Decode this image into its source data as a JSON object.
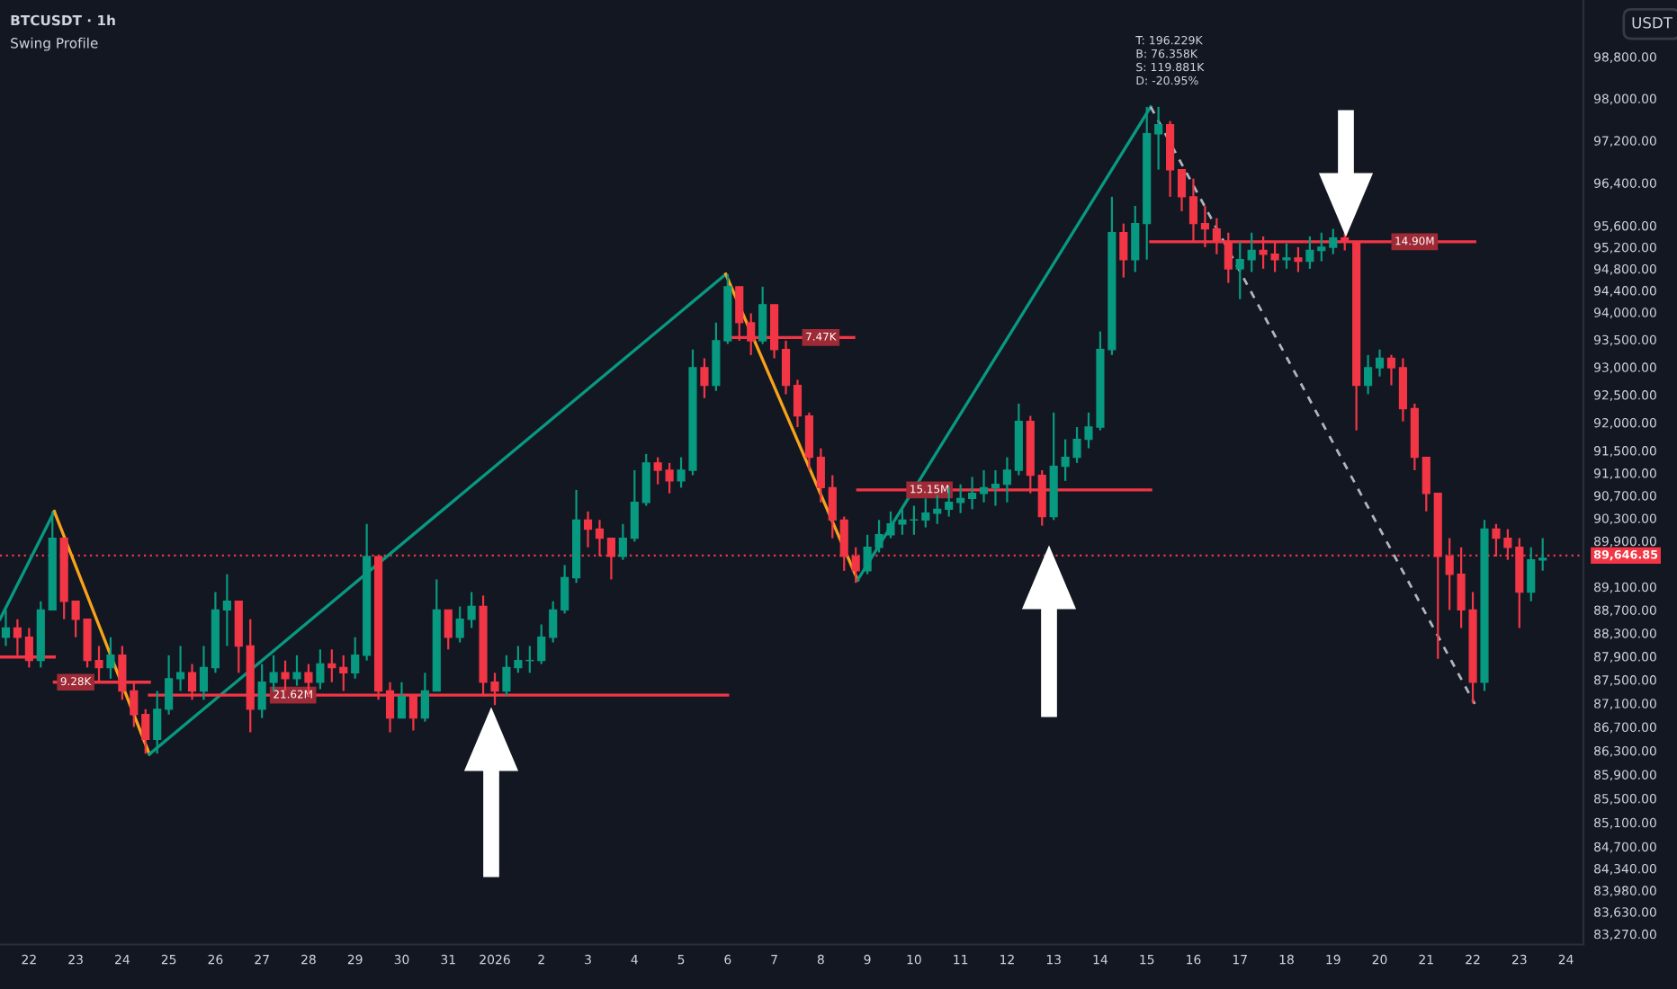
{
  "chart_data": {
    "type": "candlestick",
    "title": "BTCUSDT · 1h",
    "subtitle": "Swing Profile",
    "ylabel": "USDT",
    "log": true,
    "grid": false,
    "colors": [
      "#089981",
      "#f23645",
      "#f23645",
      "#089981",
      "#089981",
      "#f23645",
      "#f23645",
      "#f23645",
      "#f23645",
      "#089981",
      "#f23645",
      "#f23645",
      "#f23645",
      "#089981",
      "#089981",
      "#089981",
      "#f23645",
      "#089981",
      "#089981",
      "#089981",
      "#f23645",
      "#f23645",
      "#089981",
      "#089981",
      "#f23645",
      "#089981",
      "#f23645",
      "#089981",
      "#f23645",
      "#f23645",
      "#089981",
      "#089981",
      "#f23645",
      "#f23645",
      "#089981",
      "#f23645",
      "#089981",
      "#089981",
      "#f23645",
      "#089981",
      "#089981",
      "#f23645",
      "#f23645",
      "#089981",
      "#089981",
      "#089981",
      "#089981",
      "#089981",
      "#089981",
      "#089981",
      "#f23645",
      "#f23645",
      "#f23645",
      "#089981",
      "#089981",
      "#089981",
      "#f23645",
      "#f23645",
      "#089981",
      "#089981",
      "#f23645",
      "#089981",
      "#089981",
      "#f23645",
      "#f23645",
      "#089981",
      "#f23645",
      "#f23645",
      "#f23645",
      "#f23645",
      "#f23645",
      "#f23645",
      "#f23645",
      "#f23645",
      "#089981",
      "#089981",
      "#089981",
      "#089981",
      "#089981",
      "#089981",
      "#089981",
      "#089981",
      "#089981",
      "#089981",
      "#089981",
      "#089981",
      "#089981",
      "#089981",
      "#f23645",
      "#f23645",
      "#089981",
      "#089981",
      "#089981",
      "#089981",
      "#089981",
      "#089981",
      "#f23645",
      "#089981",
      "#089981",
      "#089981",
      "#f23645",
      "#f23645",
      "#f23645",
      "#f23645",
      "#f23645",
      "#f23645",
      "#089981",
      "#089981",
      "#f23645",
      "#f23645",
      "#089981",
      "#f23645",
      "#089981",
      "#089981",
      "#089981",
      "#f23645",
      "#f23645",
      "#089981",
      "#089981",
      "#f23645",
      "#f23645",
      "#f23645",
      "#f23645",
      "#f23645",
      "#f23645",
      "#f23645",
      "#f23645",
      "#089981",
      "#f23645",
      "#f23645",
      "#f23645",
      "#089981",
      "#089981"
    ],
    "x": [
      "2025-12-21T12:00",
      "2025-12-21T18:00",
      "2025-12-22T00:00",
      "2025-12-22T06:00",
      "2025-12-22T12:00",
      "2025-12-22T18:00",
      "2025-12-23T00:00",
      "2025-12-23T06:00",
      "2025-12-23T12:00",
      "2025-12-23T18:00",
      "2025-12-24T00:00",
      "2025-12-24T06:00",
      "2025-12-24T12:00",
      "2025-12-24T18:00",
      "2025-12-25T00:00",
      "2025-12-25T06:00",
      "2025-12-25T12:00",
      "2025-12-25T18:00",
      "2025-12-26T00:00",
      "2025-12-26T06:00",
      "2025-12-26T12:00",
      "2025-12-26T18:00",
      "2025-12-27T00:00",
      "2025-12-27T06:00",
      "2025-12-27T12:00",
      "2025-12-27T18:00",
      "2025-12-28T00:00",
      "2025-12-28T06:00",
      "2025-12-28T12:00",
      "2025-12-28T18:00",
      "2025-12-29T00:00",
      "2025-12-29T06:00",
      "2025-12-29T12:00",
      "2025-12-29T18:00",
      "2025-12-30T00:00",
      "2025-12-30T06:00",
      "2025-12-30T12:00",
      "2025-12-30T18:00",
      "2025-12-31T00:00",
      "2025-12-31T06:00",
      "2025-12-31T12:00",
      "2025-12-31T18:00",
      "2026-01-01T00:00",
      "2026-01-01T06:00",
      "2026-01-01T12:00",
      "2026-01-01T18:00",
      "2026-01-02T00:00",
      "2026-01-02T06:00",
      "2026-01-02T12:00",
      "2026-01-02T18:00",
      "2026-01-03T00:00",
      "2026-01-03T06:00",
      "2026-01-03T12:00",
      "2026-01-03T18:00",
      "2026-01-04T00:00",
      "2026-01-04T06:00",
      "2026-01-04T12:00",
      "2026-01-04T18:00",
      "2026-01-05T00:00",
      "2026-01-05T06:00",
      "2026-01-05T12:00",
      "2026-01-05T18:00",
      "2026-01-06T00:00",
      "2026-01-06T06:00",
      "2026-01-06T12:00",
      "2026-01-06T18:00",
      "2026-01-07T00:00",
      "2026-01-07T06:00",
      "2026-01-07T12:00",
      "2026-01-07T18:00",
      "2026-01-08T00:00",
      "2026-01-08T06:00",
      "2026-01-08T12:00",
      "2026-01-08T18:00",
      "2026-01-09T00:00",
      "2026-01-09T06:00",
      "2026-01-09T12:00",
      "2026-01-09T18:00",
      "2026-01-10T00:00",
      "2026-01-10T06:00",
      "2026-01-10T12:00",
      "2026-01-10T18:00",
      "2026-01-11T00:00",
      "2026-01-11T06:00",
      "2026-01-11T12:00",
      "2026-01-11T18:00",
      "2026-01-12T00:00",
      "2026-01-12T06:00",
      "2026-01-12T12:00",
      "2026-01-12T18:00",
      "2026-01-13T00:00",
      "2026-01-13T06:00",
      "2026-01-13T12:00",
      "2026-01-13T18:00",
      "2026-01-14T00:00",
      "2026-01-14T06:00",
      "2026-01-14T12:00",
      "2026-01-14T18:00",
      "2026-01-15T00:00",
      "2026-01-15T06:00",
      "2026-01-15T12:00",
      "2026-01-15T18:00",
      "2026-01-16T00:00",
      "2026-01-16T06:00",
      "2026-01-16T12:00",
      "2026-01-16T18:00",
      "2026-01-17T00:00",
      "2026-01-17T06:00",
      "2026-01-17T12:00",
      "2026-01-17T18:00",
      "2026-01-18T00:00",
      "2026-01-18T06:00",
      "2026-01-18T12:00",
      "2026-01-18T18:00",
      "2026-01-19T00:00",
      "2026-01-19T06:00",
      "2026-01-19T12:00",
      "2026-01-19T18:00",
      "2026-01-20T00:00",
      "2026-01-20T06:00",
      "2026-01-20T12:00",
      "2026-01-20T18:00",
      "2026-01-21T00:00",
      "2026-01-21T06:00",
      "2026-01-21T12:00",
      "2026-01-21T18:00",
      "2026-01-22T00:00",
      "2026-01-22T06:00",
      "2026-01-22T12:00",
      "2026-01-22T18:00",
      "2026-01-23T00:00",
      "2026-01-23T06:00",
      "2026-01-23T12:00"
    ],
    "ohlc": [
      [
        88230,
        88700,
        88080,
        88390
      ],
      [
        88390,
        88540,
        87920,
        88230
      ],
      [
        88230,
        88390,
        87710,
        87830
      ],
      [
        87830,
        88850,
        87710,
        88700
      ],
      [
        88700,
        90420,
        88700,
        89950
      ],
      [
        89950,
        89950,
        88540,
        88850
      ],
      [
        88850,
        88850,
        88230,
        88540
      ],
      [
        88540,
        88540,
        87710,
        87830
      ],
      [
        87830,
        88080,
        87460,
        87710
      ],
      [
        87710,
        88230,
        87520,
        87920
      ],
      [
        87920,
        88080,
        87160,
        87310
      ],
      [
        87310,
        87460,
        86700,
        86910
      ],
      [
        86910,
        87000,
        86250,
        86490
      ],
      [
        86490,
        87310,
        86250,
        87000
      ],
      [
        87000,
        87920,
        86910,
        87520
      ],
      [
        87520,
        88080,
        87310,
        87620
      ],
      [
        87620,
        87770,
        87160,
        87310
      ],
      [
        87310,
        88080,
        87160,
        87710
      ],
      [
        87710,
        89010,
        87620,
        88700
      ],
      [
        88700,
        89320,
        88080,
        88850
      ],
      [
        88850,
        88850,
        87620,
        88080
      ],
      [
        88080,
        88540,
        86610,
        87000
      ],
      [
        87000,
        87770,
        86850,
        87460
      ],
      [
        87460,
        87920,
        87310,
        87620
      ],
      [
        87620,
        87830,
        87310,
        87520
      ],
      [
        87520,
        87920,
        87400,
        87620
      ],
      [
        87620,
        87770,
        87220,
        87460
      ],
      [
        87460,
        88020,
        87340,
        87770
      ],
      [
        87770,
        88020,
        87460,
        87710
      ],
      [
        87710,
        87920,
        87310,
        87620
      ],
      [
        87620,
        88230,
        87520,
        87920
      ],
      [
        87920,
        90200,
        87830,
        89630
      ],
      [
        89630,
        89630,
        87160,
        87310
      ],
      [
        87310,
        87460,
        86610,
        86850
      ],
      [
        86850,
        87460,
        86850,
        87220
      ],
      [
        87220,
        87220,
        86640,
        86850
      ],
      [
        86850,
        87620,
        86790,
        87310
      ],
      [
        87310,
        89230,
        87310,
        88700
      ],
      [
        88700,
        88700,
        88020,
        88230
      ],
      [
        88230,
        88760,
        88140,
        88540
      ],
      [
        88540,
        89010,
        88390,
        88760
      ],
      [
        88760,
        88950,
        87220,
        87460
      ],
      [
        87460,
        87620,
        87070,
        87310
      ],
      [
        87310,
        87920,
        87220,
        87710
      ],
      [
        87710,
        88080,
        87620,
        87830
      ],
      [
        87830,
        88080,
        87620,
        87830
      ],
      [
        87830,
        88450,
        87770,
        88230
      ],
      [
        88230,
        88850,
        88140,
        88700
      ],
      [
        88700,
        89480,
        88640,
        89260
      ],
      [
        89260,
        90800,
        89170,
        90270
      ],
      [
        90270,
        90420,
        89790,
        90110
      ],
      [
        90110,
        90270,
        89630,
        89950
      ],
      [
        89950,
        89950,
        89230,
        89630
      ],
      [
        89630,
        90200,
        89570,
        89950
      ],
      [
        89950,
        91150,
        89890,
        90580
      ],
      [
        90580,
        91440,
        90520,
        91280
      ],
      [
        91280,
        91380,
        90900,
        91150
      ],
      [
        91150,
        91280,
        90740,
        90960
      ],
      [
        90960,
        91380,
        90840,
        91150
      ],
      [
        91150,
        93320,
        91060,
        92990
      ],
      [
        92990,
        93160,
        92440,
        92670
      ],
      [
        92670,
        93810,
        92570,
        93480
      ],
      [
        93480,
        94700,
        93420,
        94470
      ],
      [
        94470,
        94470,
        93480,
        93810
      ],
      [
        93810,
        93980,
        93220,
        93480
      ],
      [
        93480,
        94470,
        93420,
        94140
      ],
      [
        94140,
        94140,
        93160,
        93320
      ],
      [
        93320,
        93480,
        92510,
        92670
      ],
      [
        92670,
        92770,
        91920,
        92120
      ],
      [
        92120,
        92180,
        91150,
        91380
      ],
      [
        91380,
        91540,
        90580,
        90840
      ],
      [
        90840,
        91060,
        89950,
        90270
      ],
      [
        90270,
        90330,
        89380,
        89630
      ],
      [
        89630,
        89790,
        89170,
        89380
      ],
      [
        89380,
        90010,
        89320,
        89790
      ],
      [
        89790,
        90270,
        89700,
        90010
      ],
      [
        90010,
        90420,
        89950,
        90200
      ],
      [
        90200,
        90490,
        90010,
        90270
      ],
      [
        90270,
        90520,
        90010,
        90270
      ],
      [
        90270,
        90650,
        90140,
        90390
      ],
      [
        90390,
        90710,
        90200,
        90460
      ],
      [
        90460,
        90840,
        90330,
        90580
      ],
      [
        90580,
        90900,
        90390,
        90650
      ],
      [
        90650,
        91030,
        90460,
        90740
      ],
      [
        90740,
        91150,
        90580,
        90840
      ],
      [
        90840,
        91150,
        90520,
        90900
      ],
      [
        90900,
        91380,
        90580,
        91150
      ],
      [
        91150,
        92340,
        91060,
        92020
      ],
      [
        92020,
        92120,
        90740,
        91060
      ],
      [
        91060,
        91150,
        90170,
        90330
      ],
      [
        90330,
        92180,
        90270,
        91220
      ],
      [
        91220,
        91700,
        90960,
        91380
      ],
      [
        91380,
        91920,
        91280,
        91700
      ],
      [
        91700,
        92180,
        91540,
        91920
      ],
      [
        91920,
        93650,
        91860,
        93320
      ],
      [
        93320,
        96140,
        93220,
        95470
      ],
      [
        95470,
        95640,
        94640,
        94970
      ],
      [
        94970,
        95970,
        94740,
        95640
      ],
      [
        95640,
        97840,
        94970,
        97330
      ],
      [
        97330,
        97840,
        96650,
        97500
      ],
      [
        97500,
        97570,
        96140,
        96650
      ],
      [
        96650,
        96650,
        95870,
        96140
      ],
      [
        96140,
        96480,
        95300,
        95640
      ],
      [
        95640,
        95970,
        95200,
        95540
      ],
      [
        95540,
        95740,
        95070,
        95300
      ],
      [
        95300,
        95470,
        94540,
        94800
      ],
      [
        94800,
        95300,
        94240,
        94970
      ],
      [
        94970,
        95470,
        94740,
        95140
      ],
      [
        95140,
        95400,
        94800,
        95070
      ],
      [
        95070,
        95300,
        94740,
        94970
      ],
      [
        94970,
        95270,
        94800,
        95000
      ],
      [
        95000,
        95200,
        94740,
        94940
      ],
      [
        94940,
        95400,
        94800,
        95140
      ],
      [
        95140,
        95470,
        94940,
        95200
      ],
      [
        95200,
        95540,
        95070,
        95370
      ],
      [
        95370,
        95470,
        95140,
        95300
      ],
      [
        95300,
        95300,
        91860,
        92670
      ],
      [
        92670,
        93220,
        92510,
        92990
      ],
      [
        92990,
        93320,
        92830,
        93160
      ],
      [
        93160,
        93220,
        92670,
        92990
      ],
      [
        92990,
        93160,
        92020,
        92250
      ],
      [
        92250,
        92340,
        91150,
        91380
      ],
      [
        91380,
        91380,
        90420,
        90740
      ],
      [
        90740,
        90740,
        87860,
        89630
      ],
      [
        89630,
        89950,
        88700,
        89320
      ],
      [
        89320,
        89790,
        88390,
        88700
      ],
      [
        88700,
        89010,
        87100,
        87460
      ],
      [
        87460,
        90270,
        87310,
        90110
      ],
      [
        90110,
        90200,
        89630,
        89950
      ],
      [
        89950,
        90110,
        89570,
        89790
      ],
      [
        89790,
        89950,
        88390,
        89010
      ],
      [
        89010,
        89790,
        88850,
        89570
      ],
      [
        89570,
        89950,
        89380,
        89600
      ]
    ],
    "series": [
      {
        "type": "line",
        "color": "#089981",
        "x": [
          "2025-12-21T09:00",
          "2025-12-22T13:00"
        ],
        "values": [
          88540,
          90420
        ]
      },
      {
        "type": "line",
        "color": "#f7a21b",
        "x": [
          "2025-12-22T13:00",
          "2025-12-24T14:00"
        ],
        "values": [
          90420,
          86240
        ]
      },
      {
        "type": "line",
        "color": "#089981",
        "x": [
          "2025-12-24T14:00",
          "2026-01-05T23:00"
        ],
        "values": [
          86240,
          94700
        ]
      },
      {
        "type": "line",
        "color": "#f7a21b",
        "x": [
          "2026-01-05T23:00",
          "2026-01-08T19:00"
        ],
        "values": [
          94700,
          89220
        ]
      },
      {
        "type": "line",
        "color": "#089981",
        "x": [
          "2026-01-08T19:00",
          "2026-01-15T02:00"
        ],
        "values": [
          89220,
          97840
        ]
      },
      {
        "type": "line",
        "color": "#b2b5be",
        "line_style": "dashed",
        "x": [
          "2026-01-15T02:00",
          "2026-01-22T01:00"
        ],
        "values": [
          97840,
          87090
        ]
      },
      {
        "type": "line",
        "color": "#f23645",
        "x": [
          "2025-12-21T09:00",
          "2025-12-22T13:00"
        ],
        "values": [
          87890,
          87890
        ]
      },
      {
        "type": "line",
        "color": "#f23645",
        "x": [
          "2025-12-22T13:00",
          "2025-12-24T14:00"
        ],
        "values": [
          87460,
          87460
        ]
      },
      {
        "type": "line",
        "color": "#f23645",
        "x": [
          "2025-12-24T14:00",
          "2026-01-06T00:00"
        ],
        "values": [
          87240,
          87240
        ]
      },
      {
        "type": "line",
        "color": "#f23645",
        "x": [
          "2026-01-05T23:00",
          "2026-01-08T17:00"
        ],
        "values": [
          93540,
          93540
        ]
      },
      {
        "type": "line",
        "color": "#f23645",
        "x": [
          "2026-01-08T19:00",
          "2026-01-15T02:00"
        ],
        "values": [
          90800,
          90800
        ]
      },
      {
        "type": "line",
        "color": "#f23645",
        "x": [
          "2026-01-15T02:00",
          "2026-01-22T01:00"
        ],
        "values": [
          95300,
          95300
        ]
      }
    ],
    "annotations": [
      {
        "text": "9.28K",
        "x": "2025-12-23T00:00",
        "y": 87460
      },
      {
        "text": "21.62M",
        "x": "2025-12-27T16:00",
        "y": 87240
      },
      {
        "text": "7.47K",
        "x": "2026-01-08T00:00",
        "y": 93540
      },
      {
        "text": "15.15M",
        "x": "2026-01-10T08:00",
        "y": 90800
      },
      {
        "text": "14.90M",
        "x": "2026-01-20T18:00",
        "y": 95300
      },
      {
        "text": "T: 196.229K\nB: 76.358K\nS: 119.881K\nD: -20.95%",
        "x": "2026-01-15T02:00",
        "y": 97840
      }
    ],
    "ref_lines": [
      {
        "axis": "y",
        "value": 89646.85,
        "label": "89,646.85",
        "color": "#f23645",
        "line_style": "dotted"
      }
    ],
    "xlim": [
      "2025-12-21T09:00",
      "2026-01-24T09:00"
    ],
    "xticks": [
      {
        "value": "2025-12-22",
        "label": "22"
      },
      {
        "value": "2025-12-23",
        "label": "23"
      },
      {
        "value": "2025-12-24",
        "label": "24"
      },
      {
        "value": "2025-12-25",
        "label": "25"
      },
      {
        "value": "2025-12-26",
        "label": "26"
      },
      {
        "value": "2025-12-27",
        "label": "27"
      },
      {
        "value": "2025-12-28",
        "label": "28"
      },
      {
        "value": "2025-12-29",
        "label": "29"
      },
      {
        "value": "2025-12-30",
        "label": "30"
      },
      {
        "value": "2025-12-31",
        "label": "31"
      },
      {
        "value": "2026-01-01",
        "label": "2026"
      },
      {
        "value": "2026-01-02",
        "label": "2"
      },
      {
        "value": "2026-01-03",
        "label": "3"
      },
      {
        "value": "2026-01-04",
        "label": "4"
      },
      {
        "value": "2026-01-05",
        "label": "5"
      },
      {
        "value": "2026-01-06",
        "label": "6"
      },
      {
        "value": "2026-01-07",
        "label": "7"
      },
      {
        "value": "2026-01-08",
        "label": "8"
      },
      {
        "value": "2026-01-09",
        "label": "9"
      },
      {
        "value": "2026-01-10",
        "label": "10"
      },
      {
        "value": "2026-01-11",
        "label": "11"
      },
      {
        "value": "2026-01-12",
        "label": "12"
      },
      {
        "value": "2026-01-13",
        "label": "13"
      },
      {
        "value": "2026-01-14",
        "label": "14"
      },
      {
        "value": "2026-01-15",
        "label": "15"
      },
      {
        "value": "2026-01-16",
        "label": "16"
      },
      {
        "value": "2026-01-17",
        "label": "17"
      },
      {
        "value": "2026-01-18",
        "label": "18"
      },
      {
        "value": "2026-01-19",
        "label": "19"
      },
      {
        "value": "2026-01-20",
        "label": "20"
      },
      {
        "value": "2026-01-21",
        "label": "21"
      },
      {
        "value": "2026-01-22",
        "label": "22"
      },
      {
        "value": "2026-01-23",
        "label": "23"
      },
      {
        "value": "2026-01-24",
        "label": "24"
      }
    ],
    "ylim": [
      83100,
      99900
    ],
    "yticks": [
      {
        "value": 98800,
        "label": "98,800.00"
      },
      {
        "value": 98000,
        "label": "98,000.00"
      },
      {
        "value": 97200,
        "label": "97,200.00"
      },
      {
        "value": 96400,
        "label": "96,400.00"
      },
      {
        "value": 95600,
        "label": "95,600.00"
      },
      {
        "value": 95200,
        "label": "95,200.00"
      },
      {
        "value": 94800,
        "label": "94,800.00"
      },
      {
        "value": 94400,
        "label": "94,400.00"
      },
      {
        "value": 94000,
        "label": "94,000.00"
      },
      {
        "value": 93500,
        "label": "93,500.00"
      },
      {
        "value": 93000,
        "label": "93,000.00"
      },
      {
        "value": 92500,
        "label": "92,500.00"
      },
      {
        "value": 92000,
        "label": "92,000.00"
      },
      {
        "value": 91500,
        "label": "91,500.00"
      },
      {
        "value": 91100,
        "label": "91,100.00"
      },
      {
        "value": 90700,
        "label": "90,700.00"
      },
      {
        "value": 90300,
        "label": "90,300.00"
      },
      {
        "value": 89900,
        "label": "89,900.00"
      },
      {
        "value": 89100,
        "label": "89,100.00"
      },
      {
        "value": 88700,
        "label": "88,700.00"
      },
      {
        "value": 88300,
        "label": "88,300.00"
      },
      {
        "value": 87900,
        "label": "87,900.00"
      },
      {
        "value": 87500,
        "label": "87,500.00"
      },
      {
        "value": 87100,
        "label": "87,100.00"
      },
      {
        "value": 86700,
        "label": "86,700.00"
      },
      {
        "value": 86300,
        "label": "86,300.00"
      },
      {
        "value": 85900,
        "label": "85,900.00"
      },
      {
        "value": 85500,
        "label": "85,500.00"
      },
      {
        "value": 85100,
        "label": "85,100.00"
      },
      {
        "value": 84700,
        "label": "84,700.00"
      },
      {
        "value": 84340,
        "label": "84,340.00"
      },
      {
        "value": 83980,
        "label": "83,980.00"
      },
      {
        "value": 83630,
        "label": "83,630.00"
      },
      {
        "value": 83270,
        "label": "83,270.00"
      }
    ]
  }
}
